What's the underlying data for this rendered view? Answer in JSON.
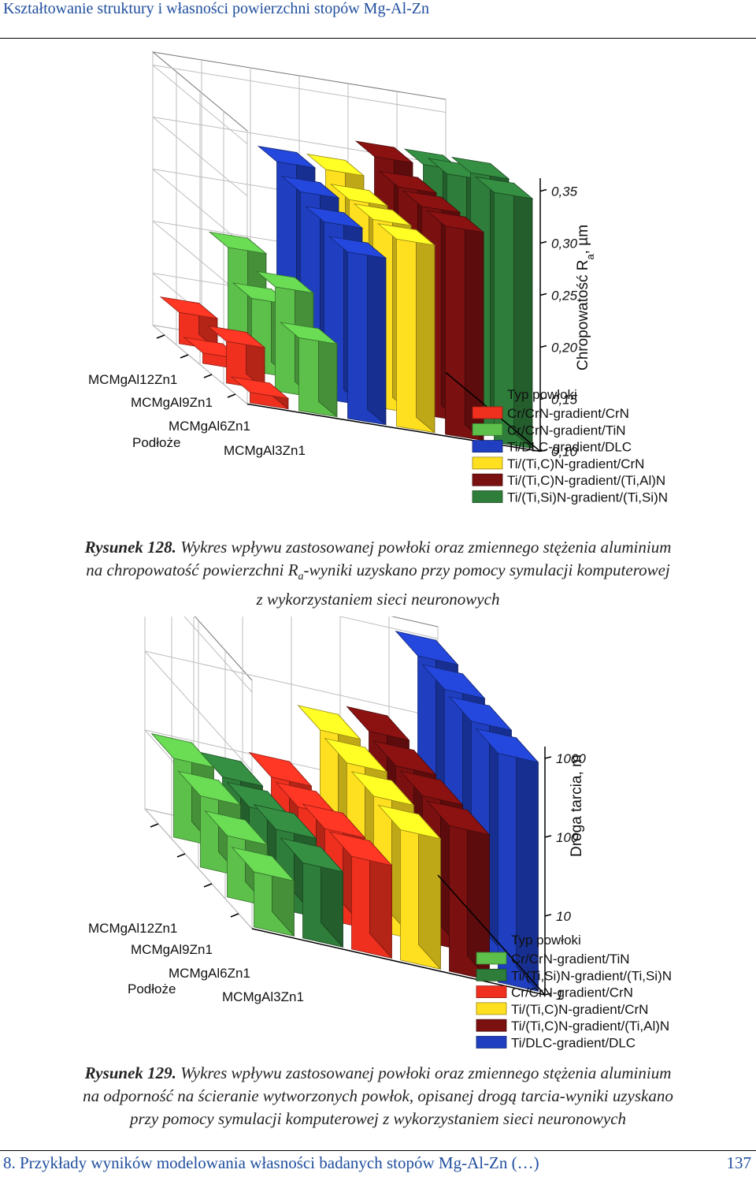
{
  "header": {
    "title": "Kształtowanie struktury i własności powierzchni stopów Mg-Al-Zn"
  },
  "footer": {
    "chapter": "8. Przykłady wyników modelowania własności badanych stopów Mg-Al-Zn (…)",
    "page": "137"
  },
  "figure128": {
    "label": "Rysunek 128.",
    "caption_line1": "Wykres wpływu zastosowanej powłoki oraz zmiennego stężenia aluminium",
    "caption_line2a": "na chropowatość powierzchni R",
    "caption_sub": "a",
    "caption_line2b": "-wyniki uzyskano przy pomocy symulacji komputerowej",
    "caption_line3": "z wykorzystaniem sieci neuronowych"
  },
  "figure129": {
    "label": "Rysunek 129.",
    "caption_line1": "Wykres wpływu zastosowanej powłoki oraz zmiennego stężenia aluminium",
    "caption_line2": "na odporność na ścieranie wytworzonych powłok, opisanej drogą tarcia-wyniki uzyskano",
    "caption_line3": "przy pomocy symulacji komputerowej z wykorzystaniem sieci neuronowych"
  },
  "chart_data": [
    {
      "type": "bar3d",
      "zlabel_main": "Chropowatość R",
      "zlabel_sub": "a",
      "zlabel_unit": ", µm",
      "zticks": [
        "0,10",
        "0,15",
        "0,20",
        "0,25",
        "0,30",
        "0,35"
      ],
      "zlim": [
        0.1,
        0.35
      ],
      "categories": [
        "MCMgAl12Zn1",
        "MCMgAl9Zn1",
        "MCMgAl6Zn1",
        "MCMgAl3Zn1"
      ],
      "substrate_label": "Podłoże",
      "legend_title": "Typ powłoki",
      "series": [
        {
          "name": "Cr/CrN-gradient/CrN",
          "color": "#f0301f",
          "values": [
            0.13,
            0.11,
            0.14,
            0.11
          ]
        },
        {
          "name": "Cr/CrN-gradient/TiN",
          "color": "#5cc04a",
          "values": [
            0.2,
            0.17,
            0.2,
            0.17
          ]
        },
        {
          "name": "Ti/DLC-gradient/DLC",
          "color": "#1f3fc0",
          "values": [
            0.29,
            0.28,
            0.27,
            0.26
          ]
        },
        {
          "name": "Ti/(Ti,C)N-gradient/CrN",
          "color": "#ffe020",
          "values": [
            0.29,
            0.28,
            0.28,
            0.28
          ]
        },
        {
          "name": "Ti/(Ti,C)N-gradient/(Ti,Al)N",
          "color": "#7a1010",
          "values": [
            0.31,
            0.3,
            0.3,
            0.3
          ]
        },
        {
          "name": "Ti/(Ti,Si)N-gradient/(Ti,Si)N",
          "color": "#2e7d3a",
          "values": [
            0.31,
            0.32,
            0.34,
            0.34
          ]
        }
      ]
    },
    {
      "type": "bar3d",
      "zlabel": "Droga tarcia, m",
      "zscale": "log",
      "zticks": [
        "1",
        "10",
        "100",
        "1000"
      ],
      "zlim": [
        1,
        1000
      ],
      "categories": [
        "MCMgAl12Zn1",
        "MCMgAl9Zn1",
        "MCMgAl6Zn1",
        "MCMgAl3Zn1"
      ],
      "substrate_label": "Podłoże",
      "legend_title": "Typ powłoki",
      "series": [
        {
          "name": "Cr/CrN-gradient/TiN",
          "color": "#5cc04a",
          "values": [
            10,
            8,
            6,
            5
          ]
        },
        {
          "name": "Ti/(Ti,Si)N-gradient/(Ti,Si)N",
          "color": "#2e7d3a",
          "values": [
            8,
            8,
            10,
            9
          ]
        },
        {
          "name": "Cr/CrN-gradient/CrN",
          "color": "#f0301f",
          "values": [
            11,
            11,
            14,
            15
          ]
        },
        {
          "name": "Ti/(Ti,C)N-gradient/CrN",
          "color": "#ffe020",
          "values": [
            60,
            55,
            50,
            45
          ]
        },
        {
          "name": "Ti/(Ti,C)N-gradient/(Ti,Al)N",
          "color": "#7a1010",
          "values": [
            80,
            70,
            70,
            70
          ]
        },
        {
          "name": "Ti/DLC-gradient/DLC",
          "color": "#1f3fc0",
          "values": [
            1000,
            900,
            850,
            800
          ]
        }
      ]
    }
  ]
}
